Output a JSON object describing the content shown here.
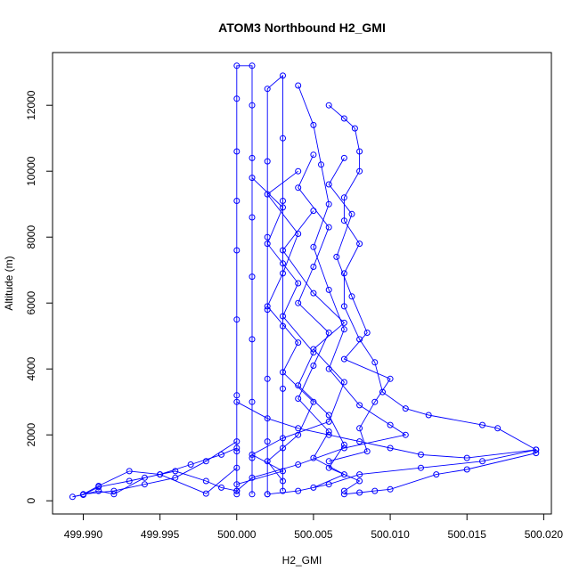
{
  "chart_data": {
    "type": "scatter",
    "title": "ATOM3 Northbound H2_GMI",
    "xlabel": "H2_GMI",
    "ylabel": "Altitude (m)",
    "xlim": [
      499.988,
      500.0205
    ],
    "ylim": [
      -400,
      13600
    ],
    "xticks": [
      499.99,
      499.995,
      500.0,
      500.005,
      500.01,
      500.015,
      500.02
    ],
    "xtick_labels": [
      "499.990",
      "499.995",
      "500.000",
      "500.005",
      "500.010",
      "500.015",
      "500.020"
    ],
    "yticks": [
      0,
      2000,
      4000,
      6000,
      8000,
      10000,
      12000
    ],
    "ytick_labels": [
      "0",
      "2000",
      "4000",
      "6000",
      "8000",
      "10000",
      "12000"
    ],
    "color": "#0000ff",
    "marker": "open-circle",
    "connected": true,
    "series": [
      {
        "points": [
          [
            500.0,
            200
          ],
          [
            500.0,
            1500
          ],
          [
            500.0,
            3200
          ],
          [
            500.0,
            5500
          ],
          [
            500.0,
            7600
          ],
          [
            500.0,
            9100
          ],
          [
            500.0,
            10600
          ],
          [
            500.0,
            12200
          ],
          [
            500.0,
            13200
          ],
          [
            500.001,
            13200
          ],
          [
            500.001,
            12000
          ],
          [
            500.001,
            10400
          ],
          [
            500.001,
            8600
          ],
          [
            500.001,
            6800
          ],
          [
            500.001,
            4900
          ],
          [
            500.001,
            3000
          ],
          [
            500.001,
            1300
          ],
          [
            500.001,
            200
          ]
        ]
      },
      {
        "points": [
          [
            500.002,
            200
          ],
          [
            500.002,
            1800
          ],
          [
            500.002,
            3700
          ],
          [
            500.002,
            5800
          ],
          [
            500.002,
            8000
          ],
          [
            500.002,
            10300
          ],
          [
            500.002,
            12500
          ],
          [
            500.003,
            12900
          ],
          [
            500.003,
            11000
          ],
          [
            500.003,
            9100
          ],
          [
            500.003,
            7200
          ],
          [
            500.003,
            5300
          ],
          [
            500.003,
            3400
          ],
          [
            500.003,
            1600
          ],
          [
            500.003,
            300
          ]
        ]
      },
      {
        "points": [
          [
            500.004,
            12600
          ],
          [
            500.005,
            11400
          ],
          [
            500.0055,
            10200
          ],
          [
            500.006,
            9000
          ],
          [
            500.005,
            7700
          ],
          [
            500.006,
            6400
          ],
          [
            500.007,
            5200
          ],
          [
            500.006,
            4000
          ],
          [
            500.008,
            2900
          ],
          [
            500.01,
            2300
          ],
          [
            500.011,
            2000
          ],
          [
            500.007,
            1600
          ],
          [
            500.004,
            1100
          ],
          [
            500.001,
            700
          ],
          [
            500.0,
            300
          ]
        ]
      },
      {
        "points": [
          [
            500.006,
            12000
          ],
          [
            500.007,
            11600
          ],
          [
            500.0077,
            11300
          ],
          [
            500.008,
            10600
          ],
          [
            500.008,
            10000
          ],
          [
            500.007,
            9200
          ],
          [
            500.007,
            8500
          ],
          [
            500.008,
            7800
          ],
          [
            500.007,
            6900
          ],
          [
            500.007,
            5900
          ],
          [
            500.008,
            4900
          ],
          [
            500.009,
            4200
          ],
          [
            500.0095,
            3300
          ],
          [
            500.011,
            2800
          ],
          [
            500.0125,
            2600
          ],
          [
            500.016,
            2300
          ],
          [
            500.017,
            2200
          ],
          [
            500.0195,
            1550
          ],
          [
            500.0195,
            1450
          ],
          [
            500.015,
            950
          ],
          [
            500.013,
            800
          ],
          [
            500.01,
            350
          ],
          [
            500.009,
            300
          ],
          [
            500.008,
            250
          ],
          [
            500.007,
            200
          ]
        ]
      },
      {
        "points": [
          [
            500.0,
            3000
          ],
          [
            500.002,
            2500
          ],
          [
            500.004,
            2200
          ],
          [
            500.006,
            2000
          ],
          [
            500.008,
            1800
          ],
          [
            500.01,
            1600
          ],
          [
            500.012,
            1400
          ],
          [
            500.015,
            1300
          ],
          [
            500.0195,
            1550
          ],
          [
            500.016,
            1200
          ],
          [
            500.012,
            1000
          ],
          [
            500.008,
            800
          ],
          [
            500.006,
            500
          ],
          [
            500.004,
            300
          ],
          [
            500.002,
            200
          ]
        ]
      },
      {
        "points": [
          [
            500.0,
            1600
          ],
          [
            499.999,
            1400
          ],
          [
            499.997,
            1100
          ],
          [
            499.995,
            800
          ],
          [
            499.993,
            600
          ],
          [
            499.991,
            420
          ],
          [
            499.99,
            180
          ],
          [
            499.9893,
            120
          ],
          [
            499.991,
            300
          ],
          [
            499.992,
            200
          ],
          [
            499.994,
            700
          ],
          [
            499.996,
            900
          ],
          [
            499.998,
            600
          ],
          [
            499.999,
            400
          ],
          [
            500.0,
            300
          ]
        ]
      },
      {
        "points": [
          [
            500.0,
            1800
          ],
          [
            499.998,
            1200
          ],
          [
            499.996,
            700
          ],
          [
            499.994,
            500
          ],
          [
            499.992,
            300
          ],
          [
            499.99,
            200
          ],
          [
            499.991,
            450
          ],
          [
            499.993,
            900
          ],
          [
            499.995,
            800
          ],
          [
            499.998,
            220
          ],
          [
            500.0,
            1000
          ]
        ]
      },
      {
        "points": [
          [
            500.005,
            10500
          ],
          [
            500.004,
            9500
          ],
          [
            500.006,
            8300
          ],
          [
            500.005,
            7100
          ],
          [
            500.004,
            6000
          ],
          [
            500.006,
            5100
          ],
          [
            500.005,
            4100
          ],
          [
            500.004,
            3100
          ],
          [
            500.006,
            2100
          ],
          [
            500.005,
            1300
          ],
          [
            500.007,
            800
          ],
          [
            500.005,
            400
          ]
        ]
      },
      {
        "points": [
          [
            500.001,
            9800
          ],
          [
            500.003,
            8900
          ],
          [
            500.002,
            7800
          ],
          [
            500.004,
            6600
          ],
          [
            500.003,
            5600
          ],
          [
            500.005,
            4500
          ],
          [
            500.004,
            3500
          ],
          [
            500.006,
            2600
          ],
          [
            500.007,
            1700
          ],
          [
            500.006,
            1000
          ],
          [
            500.008,
            600
          ],
          [
            500.007,
            300
          ]
        ]
      },
      {
        "points": [
          [
            500.005,
            8800
          ],
          [
            500.003,
            7600
          ],
          [
            500.005,
            6300
          ],
          [
            500.007,
            5400
          ],
          [
            500.005,
            4600
          ],
          [
            500.007,
            3600
          ],
          [
            500.006,
            2400
          ],
          [
            500.003,
            1900
          ],
          [
            500.001,
            1400
          ],
          [
            500.003,
            900
          ],
          [
            500.0,
            500
          ]
        ]
      },
      {
        "points": [
          [
            500.004,
            10000
          ],
          [
            500.002,
            9300
          ],
          [
            500.004,
            8100
          ],
          [
            500.003,
            6900
          ],
          [
            500.002,
            5900
          ],
          [
            500.004,
            4800
          ],
          [
            500.003,
            3900
          ],
          [
            500.005,
            3000
          ],
          [
            500.004,
            2000
          ],
          [
            500.002,
            1200
          ],
          [
            500.003,
            600
          ]
        ]
      },
      {
        "points": [
          [
            500.007,
            10400
          ],
          [
            500.006,
            9600
          ],
          [
            500.0075,
            8700
          ],
          [
            500.0065,
            7400
          ],
          [
            500.0075,
            6200
          ],
          [
            500.0085,
            5100
          ],
          [
            500.007,
            4300
          ],
          [
            500.01,
            3700
          ],
          [
            500.009,
            3000
          ],
          [
            500.008,
            2200
          ],
          [
            500.0085,
            1500
          ],
          [
            500.006,
            1200
          ]
        ]
      }
    ]
  }
}
